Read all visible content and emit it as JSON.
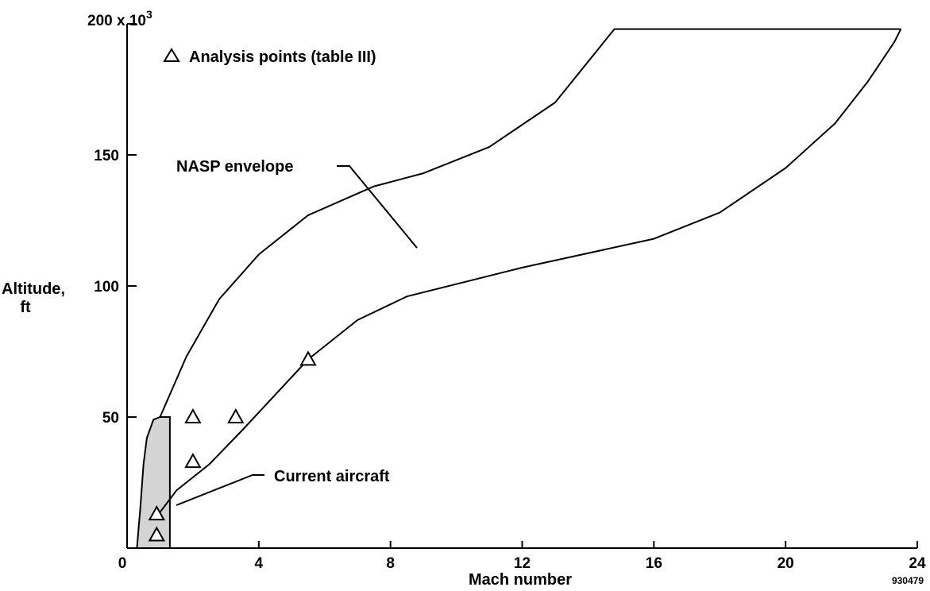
{
  "chart_data": {
    "type": "line",
    "xlabel": "Mach number",
    "ylabel_line1": "Altitude,",
    "ylabel_line2": "ft",
    "xlim": [
      0,
      24
    ],
    "ylim": [
      0,
      200000
    ],
    "x_ticks": [
      {
        "value": 0,
        "label": "0"
      },
      {
        "value": 4,
        "label": "4"
      },
      {
        "value": 8,
        "label": "8"
      },
      {
        "value": 12,
        "label": "12"
      },
      {
        "value": 16,
        "label": "16"
      },
      {
        "value": 20,
        "label": "20"
      },
      {
        "value": 24,
        "label": "24"
      }
    ],
    "y_ticks": [
      {
        "value": 50000,
        "label": "50"
      },
      {
        "value": 100000,
        "label": "100"
      },
      {
        "value": 150000,
        "label": "150"
      }
    ],
    "y_top_label": "200 x 10",
    "y_top_exponent": "3",
    "legend": {
      "label": "Analysis points (table III)",
      "marker": "triangle-open",
      "position": "top-left"
    },
    "nasp_envelope": {
      "label": "NASP envelope",
      "upper": [
        [
          1.0,
          50000
        ],
        [
          1.8,
          73000
        ],
        [
          2.8,
          95000
        ],
        [
          4,
          112000
        ],
        [
          5.5,
          127000
        ],
        [
          7.5,
          138000
        ],
        [
          9,
          143000
        ],
        [
          11,
          153000
        ],
        [
          13,
          170000
        ],
        [
          14.8,
          198000
        ],
        [
          23.5,
          198000
        ]
      ],
      "lower": [
        [
          0.9,
          12000
        ],
        [
          1.5,
          22000
        ],
        [
          2.5,
          32000
        ],
        [
          3.5,
          45000
        ],
        [
          5.5,
          72000
        ],
        [
          7,
          87000
        ],
        [
          8.5,
          96000
        ],
        [
          12,
          107000
        ],
        [
          16,
          118000
        ],
        [
          18,
          128000
        ],
        [
          20,
          145000
        ],
        [
          21.5,
          162000
        ],
        [
          22.5,
          178000
        ],
        [
          23.3,
          193000
        ],
        [
          23.5,
          198000
        ]
      ]
    },
    "current_aircraft": {
      "label": "Current aircraft",
      "region": [
        [
          0.3,
          0
        ],
        [
          0.4,
          15000
        ],
        [
          0.5,
          32000
        ],
        [
          0.6,
          42000
        ],
        [
          0.8,
          49000
        ],
        [
          1.0,
          50000
        ],
        [
          1.3,
          50000
        ],
        [
          1.3,
          0
        ]
      ]
    },
    "analysis_points": [
      {
        "x": 0.9,
        "y": 5000
      },
      {
        "x": 0.9,
        "y": 13000
      },
      {
        "x": 2.0,
        "y": 33000
      },
      {
        "x": 2.0,
        "y": 50000
      },
      {
        "x": 3.3,
        "y": 50000
      },
      {
        "x": 5.5,
        "y": 72000
      }
    ],
    "figure_id": "930479",
    "grid": false
  }
}
